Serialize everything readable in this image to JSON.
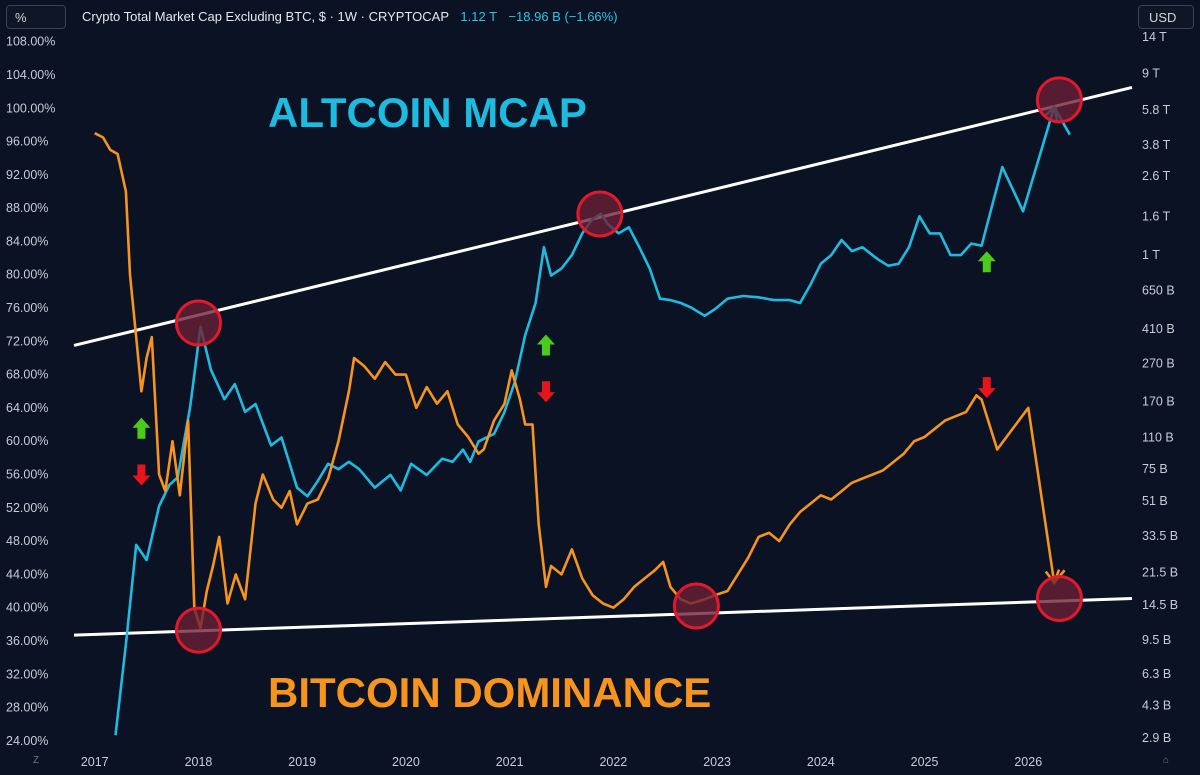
{
  "toolbar": {
    "scale_button": "%",
    "currency_button": "USD",
    "title": "Crypto Total Market Cap Excluding BTC, $ · 1W · CRYPTOCAP",
    "last_value": "1.12 T",
    "change": "−18.96 B (−1.66%)"
  },
  "corner": {
    "left_label": "Z",
    "right_label": "⌂"
  },
  "colors": {
    "background": "#0b1224",
    "altcoin_series": "#1ebbe0",
    "dominance_series": "#f7941d",
    "trendline": "#ffffff",
    "marker_fill": "#6b1f35",
    "marker_stroke": "#e0192c",
    "arrow_up": "#4ccc1a",
    "arrow_down": "#e8141c"
  },
  "chart_data": {
    "type": "line",
    "annotations": {
      "altcoin_label": "ALTCOIN MCAP",
      "dominance_label": "BITCOIN DOMINANCE"
    },
    "x_axis": {
      "ticks": [
        "2017",
        "2018",
        "2019",
        "2020",
        "2021",
        "2022",
        "2023",
        "2024",
        "2025",
        "2026"
      ],
      "tick_values": [
        2017,
        2018,
        2019,
        2020,
        2021,
        2022,
        2023,
        2024,
        2025,
        2026
      ],
      "range": [
        2016.8,
        2027.0
      ]
    },
    "y_axis_left": {
      "ticks": [
        "24.00%",
        "28.00%",
        "32.00%",
        "36.00%",
        "40.00%",
        "44.00%",
        "48.00%",
        "52.00%",
        "56.00%",
        "60.00%",
        "64.00%",
        "68.00%",
        "72.00%",
        "76.00%",
        "80.00%",
        "84.00%",
        "88.00%",
        "92.00%",
        "96.00%",
        "100.00%",
        "104.00%",
        "108.00%"
      ],
      "tick_values": [
        24,
        28,
        32,
        36,
        40,
        44,
        48,
        52,
        56,
        60,
        64,
        68,
        72,
        76,
        80,
        84,
        88,
        92,
        96,
        100,
        104,
        108
      ],
      "range": [
        23.5,
        108.2
      ]
    },
    "y_axis_right": {
      "scale": "log",
      "ticks": [
        "2.9 B",
        "4.3 B",
        "6.3 B",
        "9.5 B",
        "14.5 B",
        "21.5 B",
        "33.5 B",
        "51 B",
        "75 B",
        "110 B",
        "170 B",
        "270 B",
        "410 B",
        "650 B",
        "1 T",
        "1.6 T",
        "2.6 T",
        "3.8 T",
        "5.8 T",
        "9 T",
        "14 T"
      ],
      "tick_values": [
        2900000000.0,
        4300000000.0,
        6300000000.0,
        9500000000.0,
        14500000000.0,
        21500000000.0,
        33500000000.0,
        51000000000.0,
        75000000000.0,
        110000000000.0,
        170000000000.0,
        270000000000.0,
        410000000000.0,
        650000000000.0,
        1000000000000.0,
        1600000000000.0,
        2600000000000.0,
        3800000000000.0,
        5800000000000.0,
        9000000000000.0,
        14000000000000.0
      ]
    },
    "series": [
      {
        "key": "altcoin",
        "axis": "right",
        "points": [
          [
            2017.2,
            3000000000.0
          ],
          [
            2017.3,
            9000000000.0
          ],
          [
            2017.4,
            30000000000.0
          ],
          [
            2017.5,
            25000000000.0
          ],
          [
            2017.62,
            48000000000.0
          ],
          [
            2017.72,
            62000000000.0
          ],
          [
            2017.8,
            68000000000.0
          ],
          [
            2017.92,
            160000000000.0
          ],
          [
            2018.02,
            420000000000.0
          ],
          [
            2018.12,
            250000000000.0
          ],
          [
            2018.25,
            175000000000.0
          ],
          [
            2018.35,
            210000000000.0
          ],
          [
            2018.45,
            150000000000.0
          ],
          [
            2018.55,
            165000000000.0
          ],
          [
            2018.7,
            100000000000.0
          ],
          [
            2018.8,
            110000000000.0
          ],
          [
            2018.88,
            80000000000.0
          ],
          [
            2018.95,
            60000000000.0
          ],
          [
            2019.05,
            54000000000.0
          ],
          [
            2019.15,
            65000000000.0
          ],
          [
            2019.25,
            80000000000.0
          ],
          [
            2019.35,
            75000000000.0
          ],
          [
            2019.45,
            82000000000.0
          ],
          [
            2019.55,
            75000000000.0
          ],
          [
            2019.7,
            60000000000.0
          ],
          [
            2019.85,
            70000000000.0
          ],
          [
            2019.95,
            58000000000.0
          ],
          [
            2020.05,
            80000000000.0
          ],
          [
            2020.2,
            70000000000.0
          ],
          [
            2020.35,
            85000000000.0
          ],
          [
            2020.45,
            82000000000.0
          ],
          [
            2020.55,
            95000000000.0
          ],
          [
            2020.62,
            82000000000.0
          ],
          [
            2020.7,
            105000000000.0
          ],
          [
            2020.85,
            115000000000.0
          ],
          [
            2020.95,
            150000000000.0
          ],
          [
            2021.05,
            215000000000.0
          ],
          [
            2021.15,
            380000000000.0
          ],
          [
            2021.25,
            560000000000.0
          ],
          [
            2021.33,
            1100000000000.0
          ],
          [
            2021.4,
            780000000000.0
          ],
          [
            2021.5,
            850000000000.0
          ],
          [
            2021.6,
            1000000000000.0
          ],
          [
            2021.7,
            1300000000000.0
          ],
          [
            2021.8,
            1550000000000.0
          ],
          [
            2021.88,
            1650000000000.0
          ],
          [
            2021.95,
            1450000000000.0
          ],
          [
            2022.05,
            1300000000000.0
          ],
          [
            2022.15,
            1400000000000.0
          ],
          [
            2022.25,
            1100000000000.0
          ],
          [
            2022.35,
            850000000000.0
          ],
          [
            2022.45,
            590000000000.0
          ],
          [
            2022.55,
            580000000000.0
          ],
          [
            2022.65,
            560000000000.0
          ],
          [
            2022.75,
            530000000000.0
          ],
          [
            2022.88,
            480000000000.0
          ],
          [
            2022.98,
            520000000000.0
          ],
          [
            2023.1,
            590000000000.0
          ],
          [
            2023.25,
            610000000000.0
          ],
          [
            2023.4,
            600000000000.0
          ],
          [
            2023.55,
            580000000000.0
          ],
          [
            2023.7,
            580000000000.0
          ],
          [
            2023.8,
            560000000000.0
          ],
          [
            2023.9,
            700000000000.0
          ],
          [
            2024.0,
            900000000000.0
          ],
          [
            2024.1,
            1000000000000.0
          ],
          [
            2024.2,
            1200000000000.0
          ],
          [
            2024.3,
            1050000000000.0
          ],
          [
            2024.4,
            1100000000000.0
          ],
          [
            2024.55,
            950000000000.0
          ],
          [
            2024.65,
            880000000000.0
          ],
          [
            2024.75,
            900000000000.0
          ],
          [
            2024.85,
            1100000000000.0
          ],
          [
            2024.95,
            1600000000000.0
          ],
          [
            2025.05,
            1300000000000.0
          ],
          [
            2025.15,
            1300000000000.0
          ],
          [
            2025.25,
            1000000000000.0
          ],
          [
            2025.35,
            1000000000000.0
          ],
          [
            2025.45,
            1150000000000.0
          ],
          [
            2025.55,
            1120000000000.0
          ],
          [
            2025.75,
            2900000000000.0
          ],
          [
            2025.95,
            1700000000000.0
          ],
          [
            2026.25,
            6000000000000.0
          ],
          [
            2026.4,
            4300000000000.0
          ]
        ]
      },
      {
        "key": "dominance",
        "axis": "left",
        "points": [
          [
            2017.0,
            97.0
          ],
          [
            2017.08,
            96.5
          ],
          [
            2017.15,
            95.0
          ],
          [
            2017.22,
            94.5
          ],
          [
            2017.3,
            90.0
          ],
          [
            2017.34,
            80.0
          ],
          [
            2017.4,
            72.5
          ],
          [
            2017.45,
            66.0
          ],
          [
            2017.5,
            70.0
          ],
          [
            2017.55,
            72.5
          ],
          [
            2017.62,
            56.0
          ],
          [
            2017.68,
            54.0
          ],
          [
            2017.75,
            60.0
          ],
          [
            2017.82,
            53.5
          ],
          [
            2017.9,
            62.5
          ],
          [
            2017.96,
            40.0
          ],
          [
            2018.02,
            37.5
          ],
          [
            2018.08,
            42.0
          ],
          [
            2018.14,
            45.0
          ],
          [
            2018.2,
            48.5
          ],
          [
            2018.28,
            40.5
          ],
          [
            2018.36,
            44.0
          ],
          [
            2018.45,
            41.0
          ],
          [
            2018.55,
            52.5
          ],
          [
            2018.62,
            56.0
          ],
          [
            2018.72,
            53.0
          ],
          [
            2018.8,
            52.0
          ],
          [
            2018.88,
            54.0
          ],
          [
            2018.95,
            50.0
          ],
          [
            2019.05,
            52.5
          ],
          [
            2019.15,
            53.0
          ],
          [
            2019.25,
            55.5
          ],
          [
            2019.35,
            60.0
          ],
          [
            2019.45,
            66.0
          ],
          [
            2019.5,
            70.0
          ],
          [
            2019.6,
            69.0
          ],
          [
            2019.7,
            67.5
          ],
          [
            2019.8,
            69.5
          ],
          [
            2019.9,
            68.0
          ],
          [
            2020.0,
            68.0
          ],
          [
            2020.1,
            64.0
          ],
          [
            2020.2,
            66.5
          ],
          [
            2020.3,
            64.5
          ],
          [
            2020.4,
            66.0
          ],
          [
            2020.5,
            62.0
          ],
          [
            2020.6,
            60.5
          ],
          [
            2020.7,
            58.5
          ],
          [
            2020.75,
            59.0
          ],
          [
            2020.85,
            62.5
          ],
          [
            2020.95,
            64.5
          ],
          [
            2021.02,
            68.5
          ],
          [
            2021.1,
            65.0
          ],
          [
            2021.15,
            62.0
          ],
          [
            2021.22,
            62.0
          ],
          [
            2021.28,
            50.0
          ],
          [
            2021.35,
            42.5
          ],
          [
            2021.4,
            45.0
          ],
          [
            2021.5,
            44.0
          ],
          [
            2021.6,
            47.0
          ],
          [
            2021.7,
            43.5
          ],
          [
            2021.8,
            41.5
          ],
          [
            2021.9,
            40.5
          ],
          [
            2022.0,
            40.0
          ],
          [
            2022.1,
            41.0
          ],
          [
            2022.2,
            42.5
          ],
          [
            2022.3,
            43.5
          ],
          [
            2022.4,
            44.5
          ],
          [
            2022.48,
            45.5
          ],
          [
            2022.55,
            42.5
          ],
          [
            2022.65,
            41.0
          ],
          [
            2022.75,
            40.5
          ],
          [
            2022.88,
            41.0
          ],
          [
            2022.98,
            41.5
          ],
          [
            2023.1,
            42.0
          ],
          [
            2023.2,
            44.0
          ],
          [
            2023.3,
            46.0
          ],
          [
            2023.4,
            48.5
          ],
          [
            2023.5,
            49.0
          ],
          [
            2023.6,
            48.0
          ],
          [
            2023.7,
            50.0
          ],
          [
            2023.8,
            51.5
          ],
          [
            2023.9,
            52.5
          ],
          [
            2024.0,
            53.5
          ],
          [
            2024.1,
            53.0
          ],
          [
            2024.2,
            54.0
          ],
          [
            2024.3,
            55.0
          ],
          [
            2024.4,
            55.5
          ],
          [
            2024.5,
            56.0
          ],
          [
            2024.6,
            56.5
          ],
          [
            2024.7,
            57.5
          ],
          [
            2024.8,
            58.5
          ],
          [
            2024.9,
            60.0
          ],
          [
            2025.0,
            60.5
          ],
          [
            2025.1,
            61.5
          ],
          [
            2025.2,
            62.5
          ],
          [
            2025.3,
            63.0
          ],
          [
            2025.4,
            63.5
          ],
          [
            2025.5,
            65.5
          ],
          [
            2025.55,
            65.0
          ],
          [
            2025.7,
            59.0
          ],
          [
            2025.82,
            61.0
          ],
          [
            2026.0,
            64.0
          ],
          [
            2026.25,
            43.0
          ],
          [
            2026.35,
            44.5
          ]
        ]
      }
    ],
    "trendlines": [
      {
        "from": [
          2016.8,
          71.5
        ],
        "to": [
          2027.0,
          102.5
        ]
      },
      {
        "from": [
          2016.8,
          36.7
        ],
        "to": [
          2027.0,
          41.1
        ]
      }
    ],
    "circle_markers": [
      [
        2018.0,
        74.2
      ],
      [
        2018.0,
        37.3
      ],
      [
        2021.87,
        87.3
      ],
      [
        2022.8,
        40.2
      ],
      [
        2026.3,
        101.0
      ],
      [
        2026.3,
        41.1
      ]
    ],
    "arrows": [
      {
        "dir": "up",
        "x": 2017.45,
        "y": 61.5
      },
      {
        "dir": "down",
        "x": 2017.45,
        "y": 56.0
      },
      {
        "dir": "up",
        "x": 2021.35,
        "y": 71.5
      },
      {
        "dir": "down",
        "x": 2021.35,
        "y": 66.0
      },
      {
        "dir": "up",
        "x": 2025.6,
        "y": 81.5
      },
      {
        "dir": "down",
        "x": 2025.6,
        "y": 66.5
      }
    ]
  }
}
